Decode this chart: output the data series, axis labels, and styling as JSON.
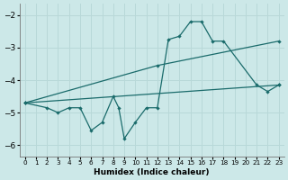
{
  "bg_color": "#cce8e8",
  "grid_color": "#b8d8d8",
  "line_color": "#1a6b6b",
  "xlabel": "Humidex (Indice chaleur)",
  "xlim": [
    -0.5,
    23.5
  ],
  "ylim": [
    -6.35,
    -1.65
  ],
  "yticks": [
    -6,
    -5,
    -4,
    -3,
    -2
  ],
  "xticks": [
    0,
    1,
    2,
    3,
    4,
    5,
    6,
    7,
    8,
    9,
    10,
    11,
    12,
    13,
    14,
    15,
    16,
    17,
    18,
    19,
    20,
    21,
    22,
    23
  ],
  "line1_x": [
    0,
    23
  ],
  "line1_y": [
    -4.7,
    -4.15
  ],
  "line2_x": [
    0,
    12,
    23
  ],
  "line2_y": [
    -4.7,
    -3.55,
    -2.8
  ],
  "zigzag_x": [
    0,
    2,
    3,
    4,
    5,
    6,
    7,
    8,
    8.5,
    9,
    10,
    11,
    12,
    13,
    14,
    15,
    16,
    17,
    18,
    21,
    22,
    23
  ],
  "zigzag_y": [
    -4.7,
    -4.85,
    -5.0,
    -4.85,
    -4.85,
    -5.55,
    -5.3,
    -4.5,
    -4.85,
    -5.8,
    -5.3,
    -4.85,
    -4.85,
    -2.75,
    -2.65,
    -2.2,
    -2.2,
    -2.8,
    -2.8,
    -4.15,
    -4.35,
    -4.15
  ]
}
